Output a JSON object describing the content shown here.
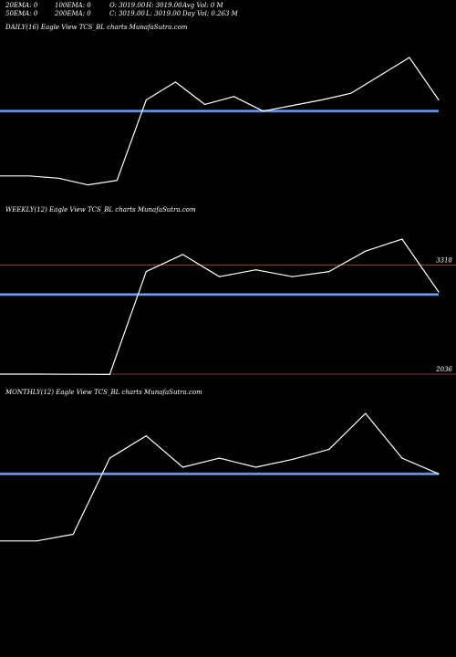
{
  "header": {
    "row1": [
      "20EMA: 0",
      "100EMA: 0",
      "O: 3019.00",
      "H: 3019.00",
      "Avg Vol: 0  M"
    ],
    "row2": [
      "50EMA: 0",
      "200EMA: 0",
      "C: 3019.00",
      "L: 3019.00",
      "Day Vol: 0.263 M"
    ]
  },
  "colors": {
    "background": "#000000",
    "price_line": "#ffffff",
    "ema_line": "#4a78d0",
    "level_line": "#a0522d"
  },
  "chart_data": [
    {
      "type": "line",
      "title": "DAILY(16) Eagle  View  TCS_BL  charts MunafaSutra.com",
      "x": [
        1,
        2,
        3,
        4,
        5,
        6,
        7,
        8,
        9,
        10,
        11,
        12,
        13,
        14,
        15,
        16
      ],
      "series": [
        {
          "values": [
            0.32,
            0.32,
            0.3,
            0.24,
            0.28,
            1.0,
            1.16,
            0.96,
            1.03,
            0.9,
            0.95,
            1.0,
            1.06,
            1.22,
            1.38,
            1.0
          ]
        }
      ],
      "ema_level": 0.9,
      "ylim": [
        0,
        1.6
      ]
    },
    {
      "type": "line",
      "title": "WEEKLY(12) Eagle  View  TCS_BL  charts MunafaSutra.com",
      "x": [
        1,
        2,
        3,
        4,
        5,
        6,
        7,
        8,
        9,
        10,
        11,
        12,
        13
      ],
      "series": [
        {
          "values": [
            2036,
            2036,
            2034,
            2031,
            3240,
            3440,
            3180,
            3260,
            3180,
            3240,
            3480,
            3620,
            3000
          ]
        }
      ],
      "ema_level": 2970,
      "levels": [
        3318,
        2036
      ],
      "level_labels": [
        "3318",
        "2036"
      ],
      "ylim": [
        1800,
        3900
      ]
    },
    {
      "type": "line",
      "title": "MONTHLY(12) Eagle  View  TCS_BL  charts MunafaSutra.com",
      "x": [
        1,
        2,
        3,
        4,
        5,
        6,
        7,
        8,
        9,
        10,
        11,
        12,
        13
      ],
      "series": [
        {
          "values": [
            0.32,
            0.32,
            0.38,
            1.06,
            1.26,
            0.98,
            1.06,
            0.98,
            1.05,
            1.14,
            1.46,
            1.06,
            0.92
          ]
        }
      ],
      "ema_level": 0.92,
      "ylim": [
        0,
        1.6
      ]
    }
  ]
}
